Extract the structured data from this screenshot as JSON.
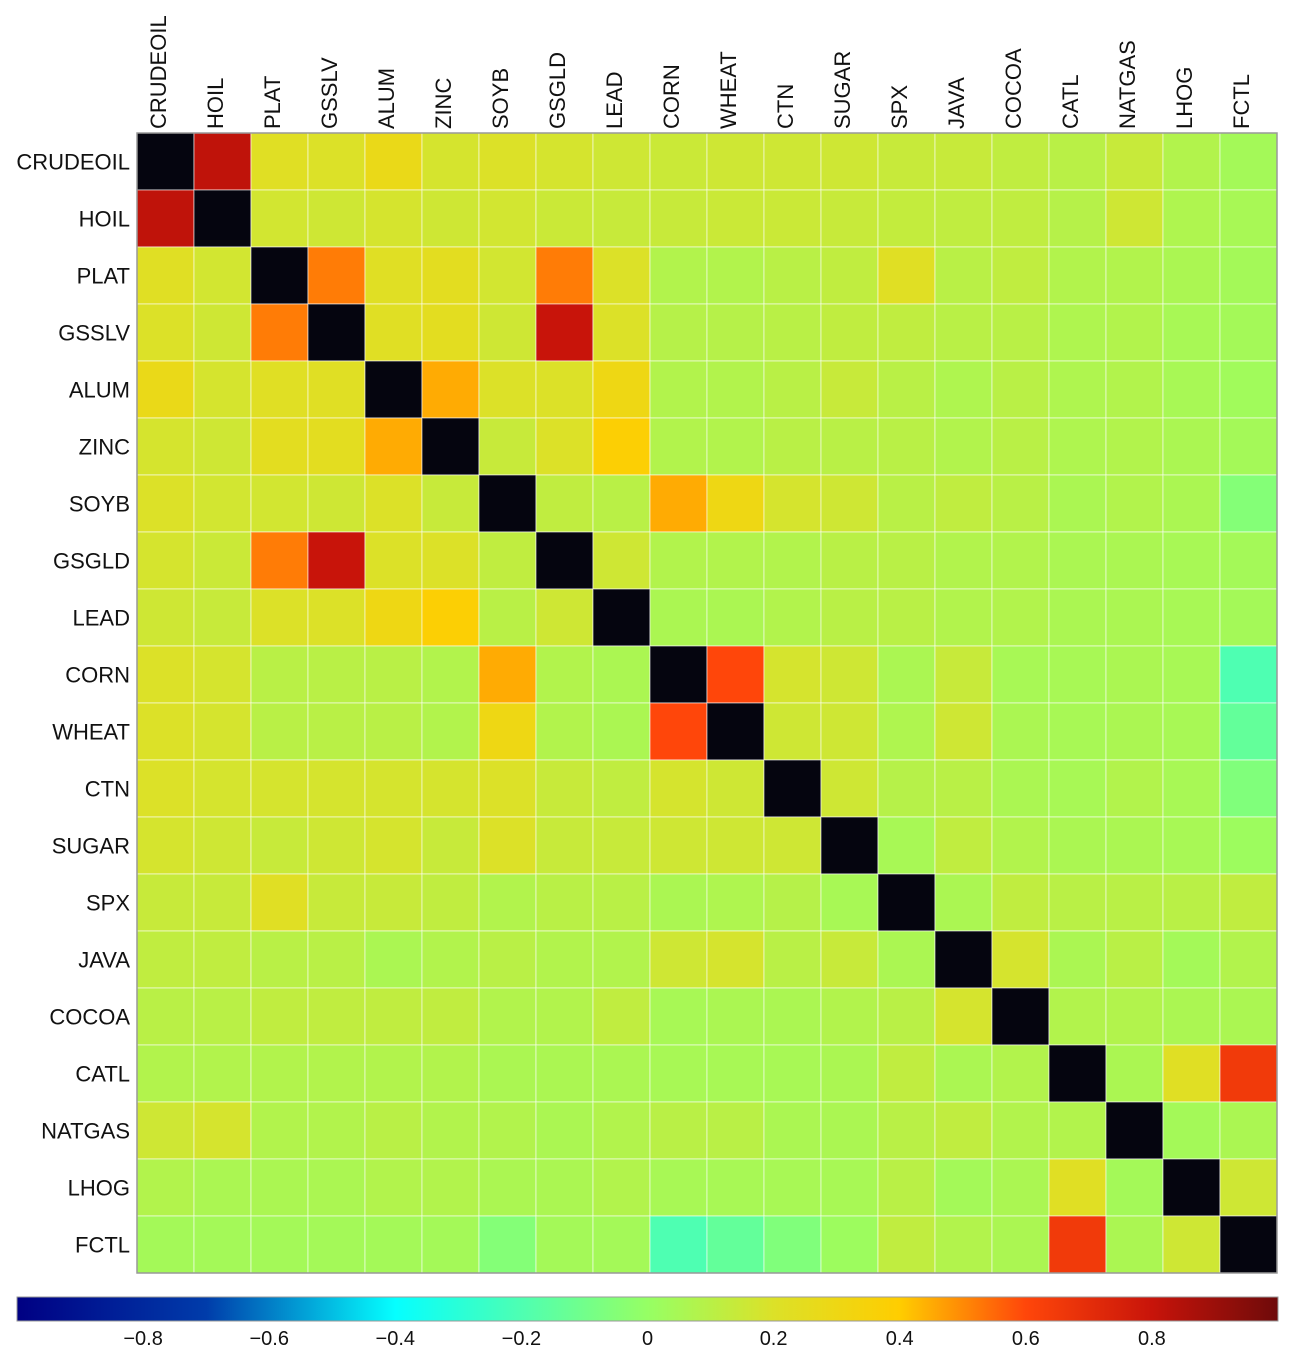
{
  "chart_data": {
    "type": "heatmap",
    "title": "",
    "row_labels": [
      "CRUDEOIL",
      "HOIL",
      "PLAT",
      "GSSLV",
      "ALUM",
      "ZINC",
      "SOYB",
      "GSGLD",
      "LEAD",
      "CORN",
      "WHEAT",
      "CTN",
      "SUGAR",
      "SPX",
      "JAVA",
      "COCOA",
      "CATL",
      "NATGAS",
      "LHOG",
      "FCTL"
    ],
    "col_labels": [
      "CRUDEOIL",
      "HOIL",
      "PLAT",
      "GSSLV",
      "ALUM",
      "ZINC",
      "SOYB",
      "GSGLD",
      "LEAD",
      "CORN",
      "WHEAT",
      "CTN",
      "SUGAR",
      "SPX",
      "JAVA",
      "COCOA",
      "CATL",
      "NATGAS",
      "LHOG",
      "FCTL"
    ],
    "values": [
      [
        1.0,
        0.82,
        0.22,
        0.2,
        0.28,
        0.18,
        0.2,
        0.18,
        0.16,
        0.15,
        0.16,
        0.16,
        0.16,
        0.14,
        0.14,
        0.12,
        0.1,
        0.14,
        0.08,
        0.04
      ],
      [
        0.82,
        1.0,
        0.17,
        0.16,
        0.18,
        0.16,
        0.17,
        0.15,
        0.14,
        0.14,
        0.15,
        0.15,
        0.14,
        0.13,
        0.12,
        0.12,
        0.09,
        0.16,
        0.07,
        0.05
      ],
      [
        0.22,
        0.17,
        1.0,
        0.52,
        0.22,
        0.24,
        0.17,
        0.52,
        0.2,
        0.08,
        0.08,
        0.1,
        0.12,
        0.22,
        0.1,
        0.12,
        0.08,
        0.08,
        0.06,
        0.04
      ],
      [
        0.2,
        0.16,
        0.52,
        1.0,
        0.22,
        0.24,
        0.16,
        0.8,
        0.2,
        0.09,
        0.09,
        0.1,
        0.12,
        0.12,
        0.1,
        0.1,
        0.07,
        0.08,
        0.05,
        0.04
      ],
      [
        0.28,
        0.18,
        0.22,
        0.22,
        1.0,
        0.45,
        0.2,
        0.2,
        0.3,
        0.08,
        0.08,
        0.1,
        0.14,
        0.1,
        0.07,
        0.1,
        0.07,
        0.08,
        0.05,
        0.03
      ],
      [
        0.18,
        0.16,
        0.24,
        0.24,
        0.45,
        1.0,
        0.14,
        0.2,
        0.38,
        0.08,
        0.08,
        0.1,
        0.1,
        0.1,
        0.08,
        0.1,
        0.07,
        0.08,
        0.06,
        0.04
      ],
      [
        0.2,
        0.17,
        0.17,
        0.16,
        0.2,
        0.14,
        1.0,
        0.12,
        0.1,
        0.45,
        0.3,
        0.18,
        0.16,
        0.1,
        0.12,
        0.1,
        0.06,
        0.08,
        0.06,
        -0.05
      ],
      [
        0.18,
        0.15,
        0.52,
        0.8,
        0.2,
        0.2,
        0.12,
        1.0,
        0.16,
        0.08,
        0.08,
        0.08,
        0.1,
        0.1,
        0.08,
        0.08,
        0.06,
        0.06,
        0.05,
        0.04
      ],
      [
        0.16,
        0.14,
        0.2,
        0.2,
        0.3,
        0.38,
        0.1,
        0.16,
        1.0,
        0.06,
        0.06,
        0.08,
        0.1,
        0.1,
        0.08,
        0.08,
        0.06,
        0.06,
        0.05,
        0.04
      ],
      [
        0.2,
        0.18,
        0.1,
        0.1,
        0.1,
        0.08,
        0.45,
        0.08,
        0.06,
        1.0,
        0.6,
        0.18,
        0.16,
        0.06,
        0.14,
        0.05,
        0.05,
        0.06,
        0.05,
        -0.2
      ],
      [
        0.2,
        0.18,
        0.1,
        0.1,
        0.1,
        0.08,
        0.3,
        0.08,
        0.06,
        0.6,
        1.0,
        0.16,
        0.16,
        0.07,
        0.16,
        0.06,
        0.05,
        0.06,
        0.05,
        -0.14
      ],
      [
        0.2,
        0.18,
        0.18,
        0.18,
        0.18,
        0.18,
        0.2,
        0.14,
        0.12,
        0.18,
        0.16,
        1.0,
        0.16,
        0.09,
        0.1,
        0.06,
        0.05,
        0.08,
        0.05,
        -0.06
      ],
      [
        0.18,
        0.16,
        0.14,
        0.16,
        0.18,
        0.14,
        0.2,
        0.14,
        0.14,
        0.16,
        0.16,
        0.16,
        1.0,
        0.05,
        0.12,
        0.08,
        0.06,
        0.06,
        0.05,
        0.02
      ],
      [
        0.14,
        0.14,
        0.22,
        0.14,
        0.14,
        0.12,
        0.08,
        0.1,
        0.1,
        0.06,
        0.07,
        0.09,
        0.05,
        1.0,
        0.06,
        0.12,
        0.1,
        0.1,
        0.1,
        0.12
      ],
      [
        0.12,
        0.12,
        0.1,
        0.1,
        0.06,
        0.08,
        0.1,
        0.08,
        0.08,
        0.16,
        0.18,
        0.1,
        0.14,
        0.06,
        1.0,
        0.18,
        0.06,
        0.1,
        0.04,
        0.08
      ],
      [
        0.1,
        0.1,
        0.12,
        0.12,
        0.12,
        0.12,
        0.08,
        0.08,
        0.12,
        0.05,
        0.06,
        0.06,
        0.08,
        0.1,
        0.18,
        1.0,
        0.08,
        0.08,
        0.06,
        0.06
      ],
      [
        0.08,
        0.08,
        0.08,
        0.08,
        0.08,
        0.08,
        0.06,
        0.06,
        0.06,
        0.05,
        0.05,
        0.05,
        0.06,
        0.12,
        0.06,
        0.08,
        1.0,
        0.06,
        0.22,
        0.65
      ],
      [
        0.16,
        0.18,
        0.08,
        0.08,
        0.1,
        0.08,
        0.08,
        0.06,
        0.08,
        0.1,
        0.1,
        0.06,
        0.06,
        0.1,
        0.12,
        0.08,
        0.08,
        1.0,
        0.04,
        0.06
      ],
      [
        0.08,
        0.06,
        0.06,
        0.06,
        0.08,
        0.08,
        0.06,
        0.06,
        0.08,
        0.05,
        0.05,
        0.05,
        0.05,
        0.1,
        0.04,
        0.06,
        0.22,
        0.04,
        1.0,
        0.16
      ],
      [
        0.04,
        0.04,
        0.04,
        0.04,
        0.04,
        0.04,
        -0.05,
        0.04,
        0.04,
        -0.2,
        -0.14,
        -0.06,
        0.02,
        0.12,
        0.08,
        0.06,
        0.65,
        0.06,
        0.16,
        1.0
      ]
    ],
    "colorscale_range": [
      -1,
      1
    ],
    "colorbar_ticks": [
      "−0.8",
      "−0.6",
      "−0.4",
      "−0.2",
      "0",
      "0.2",
      "0.4",
      "0.6",
      "0.8"
    ],
    "colorbar_tick_values": [
      -0.8,
      -0.6,
      -0.4,
      -0.2,
      0,
      0.2,
      0.4,
      0.6,
      0.8
    ],
    "diagonal_color": "#05050f",
    "colorbar_placement": "bottom",
    "grid": true
  }
}
